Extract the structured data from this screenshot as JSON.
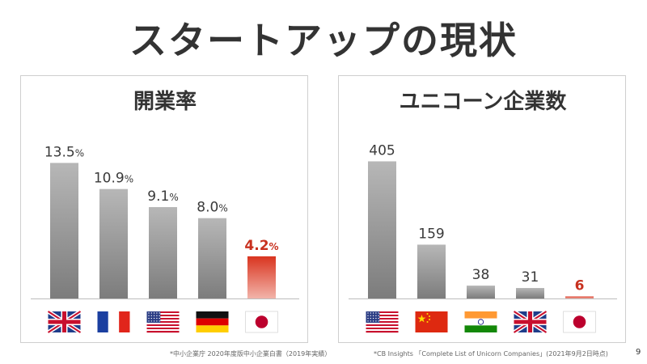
{
  "slide": {
    "title": "スタートアップの現状",
    "page_number": "9"
  },
  "colors": {
    "bar_gray": "#9a9a9a",
    "bar_japan": "#d9341f",
    "highlight_text": "#c8311f",
    "label_text": "#3a3a3a"
  },
  "chart_data": [
    {
      "type": "bar",
      "title": "開業率",
      "categories": [
        "UK",
        "France",
        "USA",
        "Germany",
        "Japan"
      ],
      "flags": [
        "uk-flag-icon",
        "france-flag-icon",
        "usa-flag-icon",
        "germany-flag-icon",
        "japan-flag-icon"
      ],
      "values": [
        13.5,
        10.9,
        9.1,
        8.0,
        4.2
      ],
      "value_labels": [
        "13.5",
        "10.9",
        "9.1",
        "8.0",
        "4.2"
      ],
      "unit": "%",
      "highlight_index": 4,
      "ylim": [
        0,
        14.5
      ],
      "footnote": "*中小企業庁 2020年度版中小企業白書（2019年実績）"
    },
    {
      "type": "bar",
      "title": "ユニコーン企業数",
      "categories": [
        "USA",
        "China",
        "India",
        "UK",
        "Japan"
      ],
      "flags": [
        "usa-flag-icon",
        "china-flag-icon",
        "india-flag-icon",
        "uk-flag-icon",
        "japan-flag-icon"
      ],
      "values": [
        405,
        159,
        38,
        31,
        6
      ],
      "value_labels": [
        "405",
        "159",
        "38",
        "31",
        "6"
      ],
      "unit": "",
      "highlight_index": 4,
      "ylim": [
        0,
        430
      ],
      "footnote": "*CB Insights 「Complete List of Unicorn Companies」(2021年9月2日時点)"
    }
  ]
}
